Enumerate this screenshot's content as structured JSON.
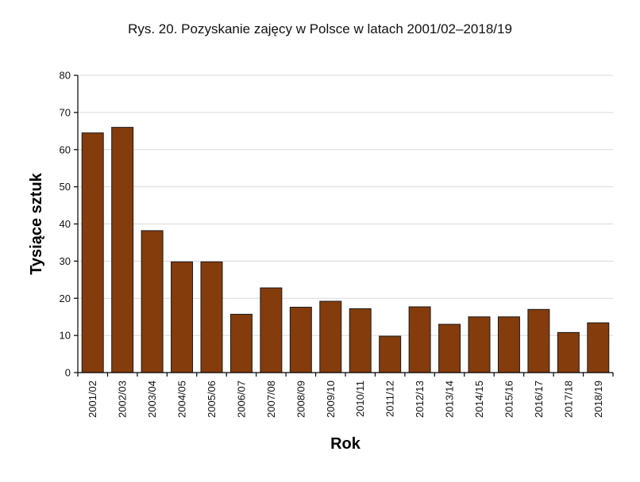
{
  "chart_data": {
    "type": "bar",
    "title": "Rys. 20. Pozyskanie zajęcy w Polsce w latach 2001/02–2018/19",
    "xlabel": "Rok",
    "ylabel": "Tysiące sztuk",
    "categories": [
      "2001/02",
      "2002/03",
      "2003/04",
      "2004/05",
      "2005/06",
      "2006/07",
      "2007/08",
      "2008/09",
      "2009/10",
      "2010/11",
      "2011/12",
      "2012/13",
      "2013/14",
      "2014/15",
      "2015/16",
      "2016/17",
      "2017/18",
      "2018/19"
    ],
    "values": [
      64.5,
      66,
      38.2,
      29.8,
      29.8,
      15.7,
      22.8,
      17.6,
      19.2,
      17.2,
      9.8,
      17.7,
      13,
      15,
      15,
      17,
      10.8,
      13.4
    ],
    "ylim": [
      0,
      80
    ],
    "yticks": [
      0,
      10,
      20,
      30,
      40,
      50,
      60,
      70,
      80
    ],
    "grid": true,
    "colors": {
      "bar": "#843C0C",
      "grid": "#d9d9d9"
    }
  }
}
